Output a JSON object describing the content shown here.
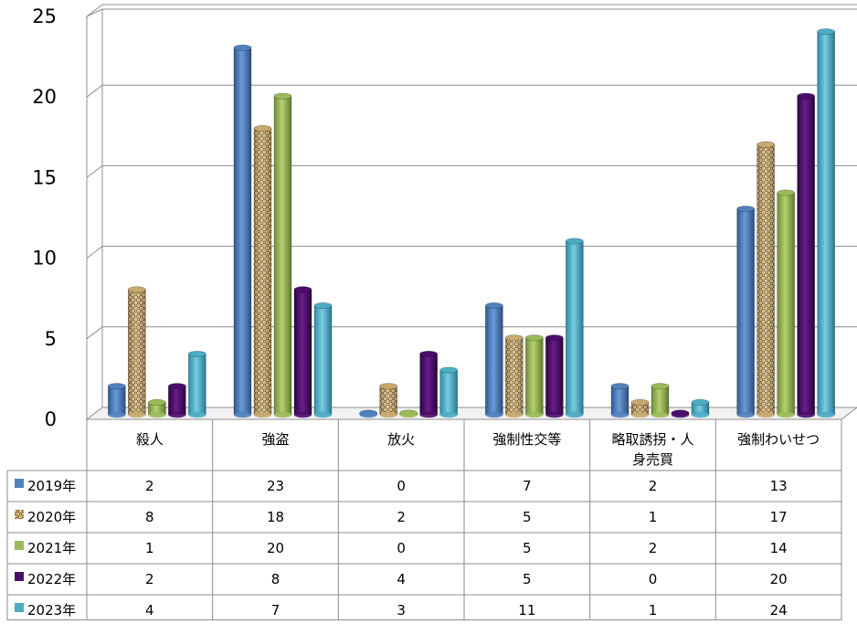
{
  "chart_data": {
    "type": "bar",
    "title": "",
    "xlabel": "",
    "ylabel": "",
    "ylim": [
      0,
      25
    ],
    "yticks": [
      0,
      5,
      10,
      15,
      20,
      25
    ],
    "grid": true,
    "legend": "table-left",
    "categories": [
      "殺人",
      "強盗",
      "放火",
      "強制性交等",
      "略取誘拐・人身売買",
      "強制わいせつ"
    ],
    "category_label_lines": [
      [
        "殺人"
      ],
      [
        "強盗"
      ],
      [
        "放火"
      ],
      [
        "強制性交等"
      ],
      [
        "略取誘拐・人",
        "身売買"
      ],
      [
        "強制わいせつ"
      ]
    ],
    "series": [
      {
        "name": "2019年",
        "values": [
          2,
          23,
          0,
          7,
          2,
          13
        ],
        "color": "#4f81bd",
        "pattern": "solid"
      },
      {
        "name": "2020年",
        "values": [
          8,
          18,
          2,
          5,
          1,
          17
        ],
        "color": "#c9a96e",
        "pattern": "woven"
      },
      {
        "name": "2021年",
        "values": [
          1,
          20,
          0,
          5,
          2,
          14
        ],
        "color": "#9bbb59",
        "pattern": "solid"
      },
      {
        "name": "2022年",
        "values": [
          2,
          8,
          4,
          5,
          0,
          20
        ],
        "color": "#4b0d6b",
        "pattern": "solid"
      },
      {
        "name": "2023年",
        "values": [
          4,
          7,
          3,
          11,
          1,
          24
        ],
        "color": "#4bacc6",
        "pattern": "solid"
      }
    ]
  }
}
